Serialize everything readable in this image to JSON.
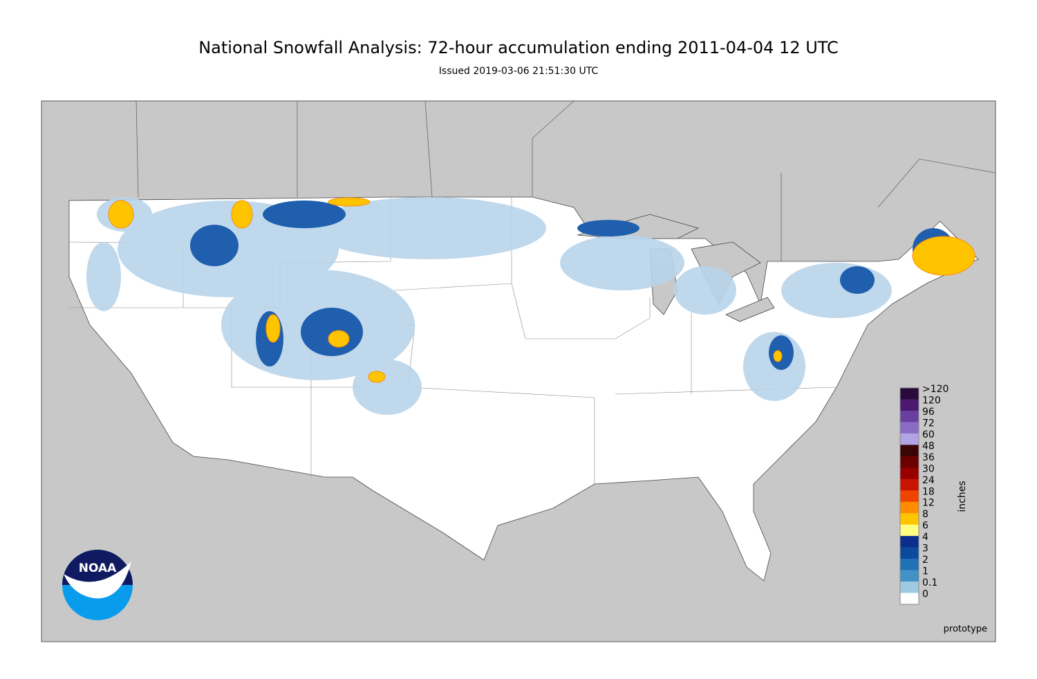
{
  "header": {
    "title": "National Snowfall Analysis: 72-hour accumulation ending 2011-04-04 12 UTC",
    "subtitle": "Issued 2019-03-06 21:51:30 UTC"
  },
  "legend": {
    "unit": "inches",
    "items": [
      {
        "label": ">120",
        "color": "#2a0a3a"
      },
      {
        "label": "120",
        "color": "#4b1a70"
      },
      {
        "label": "96",
        "color": "#6b3fa0"
      },
      {
        "label": "72",
        "color": "#8a6cc4"
      },
      {
        "label": "60",
        "color": "#b0a4e4"
      },
      {
        "label": "48",
        "color": "#3a0505"
      },
      {
        "label": "36",
        "color": "#6b0000"
      },
      {
        "label": "30",
        "color": "#990000"
      },
      {
        "label": "24",
        "color": "#c81400"
      },
      {
        "label": "18",
        "color": "#ee4400"
      },
      {
        "label": "12",
        "color": "#ff8c00"
      },
      {
        "label": "8",
        "color": "#ffc400"
      },
      {
        "label": "6",
        "color": "#ffff80"
      },
      {
        "label": "4",
        "color": "#0b2e8c"
      },
      {
        "label": "3",
        "color": "#0c4a9e"
      },
      {
        "label": "2",
        "color": "#2171b5"
      },
      {
        "label": "1",
        "color": "#4292c6"
      },
      {
        "label": "0.1",
        "color": "#9ecae1"
      },
      {
        "label": "0",
        "color": "#ffffff"
      }
    ]
  },
  "logo": {
    "text": "NOAA"
  },
  "footer": {
    "note": "prototype"
  }
}
